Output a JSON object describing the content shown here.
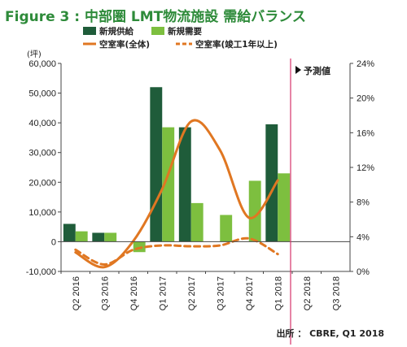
{
  "title": "Figure 3 : 中部圏 LMT物流施設 需給バランス",
  "source": "出所 ： CBRE, Q1 2018",
  "forecast_label": "予測値",
  "colors": {
    "supply": "#1f5c3a",
    "demand": "#7dbf3f",
    "vacancy_all": "#e07722",
    "vacancy_new": "#e07722",
    "forecast_line": "#d6336c",
    "title": "#2e8b3a"
  },
  "chart_data": {
    "type": "bar",
    "title": "Figure 3 : 中部圏 LMT物流施設 需給バランス",
    "categories": [
      "Q2 2016",
      "Q3 2016",
      "Q4 2016",
      "Q1 2017",
      "Q2 2017",
      "Q3 2017",
      "Q4 2017",
      "Q1 2018",
      "Q2 2018",
      "Q3 2018"
    ],
    "ylabel_left": "(坪)",
    "ylim_left": [
      -10000,
      60000
    ],
    "yticks_left": [
      "-10,000",
      "0",
      "10,000",
      "20,000",
      "30,000",
      "40,000",
      "50,000",
      "60,000"
    ],
    "ylim_right": [
      0,
      24
    ],
    "yticks_right": [
      "0%",
      "4%",
      "8%",
      "12%",
      "16%",
      "20%",
      "24%"
    ],
    "series": [
      {
        "name": "新規供給",
        "kind": "bar",
        "values": [
          6000,
          3000,
          0,
          52000,
          38500,
          0,
          0,
          39500,
          null,
          null
        ]
      },
      {
        "name": "新規需要",
        "kind": "bar",
        "values": [
          3500,
          3000,
          -3500,
          38500,
          13000,
          9000,
          20500,
          23000,
          null,
          null
        ]
      },
      {
        "name": "空室率(全体)",
        "kind": "line",
        "axis": "right",
        "values": [
          2.2,
          0.5,
          3.5,
          9.5,
          17.3,
          14,
          6.2,
          10.5,
          null,
          null
        ]
      },
      {
        "name": "空室率(竣工1年以上)",
        "kind": "line-dashed",
        "axis": "right",
        "values": [
          2.5,
          0.8,
          2.5,
          3.0,
          2.9,
          3.0,
          3.8,
          2.0,
          null,
          null
        ]
      }
    ],
    "forecast_start_category": "Q2 2018",
    "legend": "top"
  }
}
